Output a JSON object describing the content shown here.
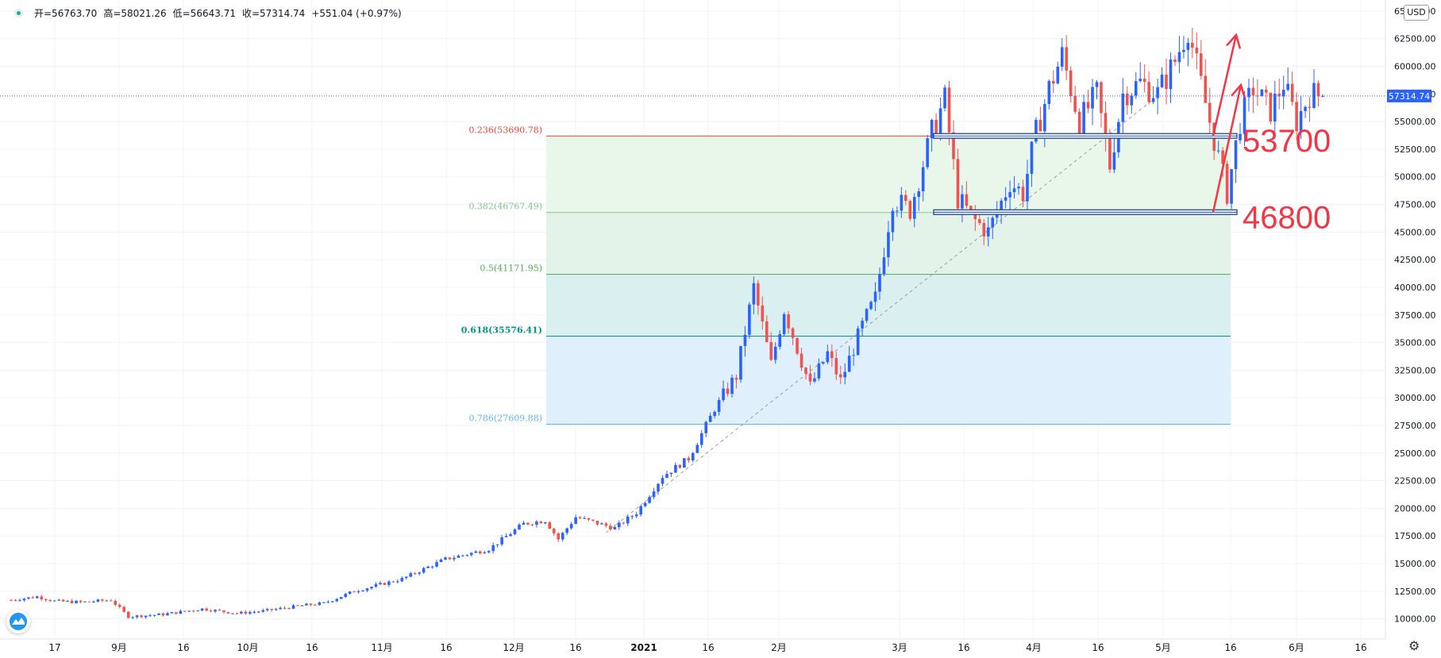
{
  "legend": {
    "open_label": "开=56763.70",
    "high_label": "高=58021.26",
    "low_label": "低=56643.71",
    "close_label": "收=57314.74",
    "change_label": "+551.04 (+0.97%)"
  },
  "currency_label": "USD",
  "current_price_label": "57314.74",
  "colors": {
    "up": "#2962ff",
    "down": "#ef5350",
    "fib_0236": "#f44336",
    "fib_0382": "#81c784",
    "fib_05": "#4caf50",
    "fib_0618": "#009688",
    "fib_0786": "#64b5f6",
    "annotation": "#f23645"
  },
  "chart_data": {
    "type": "candlestick",
    "symbol_currency": "USD",
    "y_axis": {
      "min": 8750,
      "max": 66000,
      "tick_labels": [
        "10000.00",
        "12500.00",
        "15000.00",
        "17500.00",
        "20000.00",
        "22500.00",
        "25000.00",
        "27500.00",
        "30000.00",
        "32500.00",
        "35000.00",
        "37500.00",
        "40000.00",
        "42500.00",
        "45000.00",
        "47500.00",
        "50000.00",
        "52500.00",
        "55000.00",
        "57500.00",
        "60000.00",
        "62500.00",
        "65000.00"
      ]
    },
    "x_axis": {
      "tick_labels": [
        "17",
        "9月",
        "16",
        "10月",
        "16",
        "11月",
        "16",
        "12月",
        "16",
        "2021",
        "16",
        "2月",
        "3月",
        "16",
        "4月",
        "16",
        "5月",
        "16",
        "6月",
        "16"
      ]
    },
    "current_price": 57314.74,
    "price_path": [
      [
        -2,
        11600
      ],
      [
        6,
        12000
      ],
      [
        10,
        11600
      ],
      [
        16,
        11500
      ],
      [
        23,
        11700
      ],
      [
        27,
        10200
      ],
      [
        35,
        10400
      ],
      [
        44,
        10900
      ],
      [
        52,
        10500
      ],
      [
        58,
        10700
      ],
      [
        67,
        11200
      ],
      [
        72,
        11400
      ],
      [
        79,
        12500
      ],
      [
        90,
        13600
      ],
      [
        100,
        15400
      ],
      [
        110,
        16300
      ],
      [
        118,
        18600
      ],
      [
        123,
        18900
      ],
      [
        126,
        17200
      ],
      [
        130,
        19200
      ],
      [
        139,
        18200
      ],
      [
        144,
        19600
      ],
      [
        150,
        22900
      ],
      [
        156,
        24500
      ],
      [
        162,
        29000
      ],
      [
        167,
        32000
      ],
      [
        171,
        40000
      ],
      [
        175,
        33000
      ],
      [
        178,
        38000
      ],
      [
        184,
        31000
      ],
      [
        188,
        34000
      ],
      [
        191,
        31500
      ],
      [
        196,
        36500
      ],
      [
        199,
        39000
      ],
      [
        203,
        48000
      ],
      [
        207,
        47000
      ],
      [
        212,
        54000
      ],
      [
        215,
        57000
      ],
      [
        218,
        48000
      ],
      [
        222,
        46000
      ],
      [
        225,
        45000
      ],
      [
        230,
        49500
      ],
      [
        233,
        48500
      ],
      [
        236,
        54000
      ],
      [
        239,
        58000
      ],
      [
        242,
        61000
      ],
      [
        246,
        55000
      ],
      [
        250,
        57500
      ],
      [
        253,
        51000
      ],
      [
        256,
        57500
      ],
      [
        260,
        58500
      ],
      [
        264,
        57500
      ],
      [
        268,
        60500
      ],
      [
        271,
        63500
      ],
      [
        273,
        60000
      ],
      [
        276,
        55000
      ],
      [
        280,
        48500
      ],
      [
        283,
        55000
      ],
      [
        286,
        58000
      ],
      [
        290,
        56000
      ],
      [
        293,
        58500
      ],
      [
        296,
        55000
      ],
      [
        299,
        57500
      ],
      [
        302,
        57314.74
      ]
    ],
    "fibonacci": [
      {
        "ratio": 0.236,
        "value": 53690.78,
        "label": "0.236(53690.78)"
      },
      {
        "ratio": 0.382,
        "value": 46767.49,
        "label": "0.382(46767.49)"
      },
      {
        "ratio": 0.5,
        "value": 41171.95,
        "label": "0.5(41171.95)"
      },
      {
        "ratio": 0.618,
        "value": 35576.41,
        "label": "0.618(35576.41)"
      },
      {
        "ratio": 0.786,
        "value": 27609.88,
        "label": "0.786(27609.88)"
      }
    ],
    "trendline": {
      "x1": 137,
      "y1": 17800,
      "x2": 263,
      "y2": 57000
    },
    "support_levels": [
      53700,
      46800
    ],
    "annotations": [
      "53700",
      "46800"
    ]
  }
}
